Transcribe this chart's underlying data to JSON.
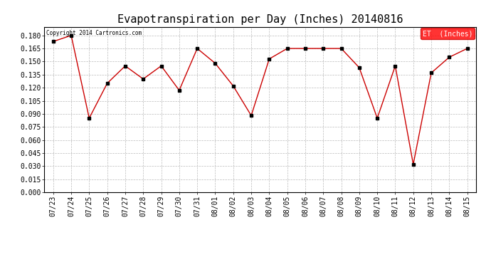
{
  "title": "Evapotranspiration per Day (Inches) 20140816",
  "copyright_text": "Copyright 2014 Cartronics.com",
  "legend_label": "ET  (Inches)",
  "dates": [
    "07/23",
    "07/24",
    "07/25",
    "07/26",
    "07/27",
    "07/28",
    "07/29",
    "07/30",
    "07/31",
    "08/01",
    "08/02",
    "08/03",
    "08/04",
    "08/05",
    "08/06",
    "08/07",
    "08/08",
    "08/09",
    "08/10",
    "08/11",
    "08/12",
    "08/13",
    "08/14",
    "08/15"
  ],
  "values": [
    0.173,
    0.18,
    0.085,
    0.125,
    0.145,
    0.13,
    0.145,
    0.117,
    0.165,
    0.148,
    0.122,
    0.088,
    0.153,
    0.165,
    0.165,
    0.165,
    0.165,
    0.143,
    0.085,
    0.145,
    0.032,
    0.137,
    0.155,
    0.165
  ],
  "line_color": "#cc0000",
  "marker_color": "#000000",
  "background_color": "#ffffff",
  "grid_color": "#bbbbbb",
  "ylim": [
    0.0,
    0.19
  ],
  "yticks": [
    0.0,
    0.015,
    0.03,
    0.045,
    0.06,
    0.075,
    0.09,
    0.105,
    0.12,
    0.135,
    0.15,
    0.165,
    0.18
  ],
  "title_fontsize": 11,
  "tick_fontsize": 7,
  "copyright_fontsize": 5.5,
  "legend_fontsize": 7,
  "legend_bg": "#ff0000",
  "legend_text_color": "#ffffff"
}
